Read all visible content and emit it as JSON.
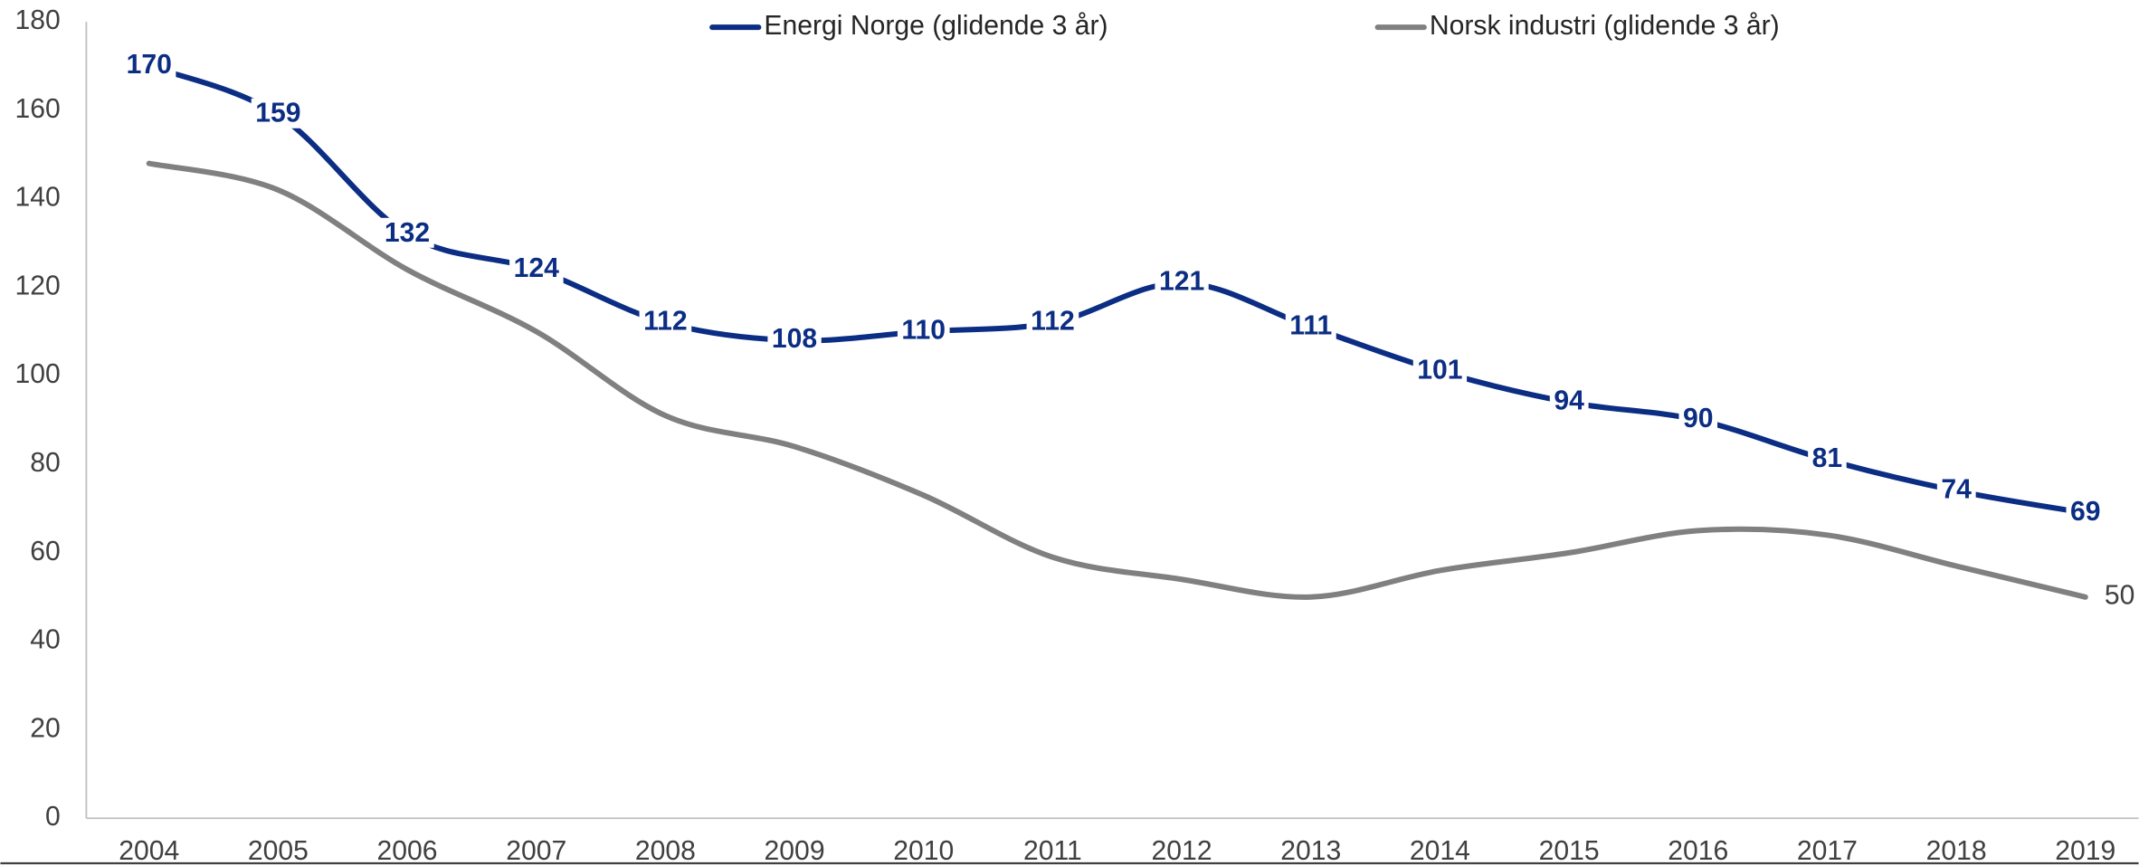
{
  "chart_data": {
    "type": "line",
    "categories": [
      "2004",
      "2005",
      "2006",
      "2007",
      "2008",
      "2009",
      "2010",
      "2011",
      "2012",
      "2013",
      "2014",
      "2015",
      "2016",
      "2017",
      "2018",
      "2019"
    ],
    "series": [
      {
        "name": "Energi Norge (glidende 3 år)",
        "color": "#0b2d83",
        "data_labels": "all",
        "values": [
          170,
          159,
          132,
          124,
          112,
          108,
          110,
          112,
          121,
          111,
          101,
          94,
          90,
          81,
          74,
          69
        ]
      },
      {
        "name": "Norsk industri (glidende 3 år)",
        "color": "#808080",
        "data_labels": "last",
        "values": [
          148,
          142,
          124,
          110,
          91,
          84,
          73,
          59,
          54,
          50,
          56,
          60,
          65,
          64,
          57,
          50
        ]
      }
    ],
    "ylim": [
      0,
      180
    ],
    "yticks": [
      0,
      20,
      40,
      60,
      80,
      100,
      120,
      140,
      160,
      180
    ],
    "grid": false,
    "smooth": true,
    "legend": "top"
  }
}
